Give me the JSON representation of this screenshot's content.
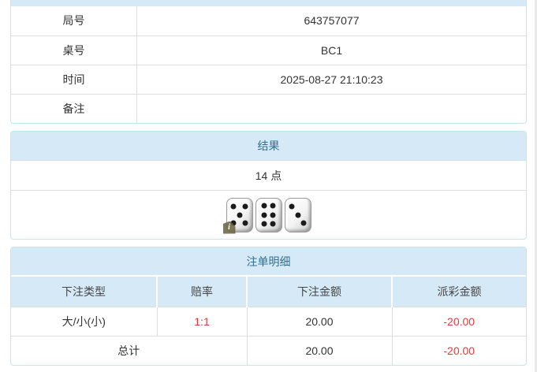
{
  "colors": {
    "panel_border": "#bce8f1",
    "header_bg": "#d5eaf6",
    "header_text": "#31708f",
    "cell_border": "#dddddd",
    "body_text": "#333333",
    "negative_text": "#e4393c"
  },
  "info_table": {
    "rows": [
      {
        "label": "局号",
        "value": "643757077"
      },
      {
        "label": "桌号",
        "value": "BC1"
      },
      {
        "label": "时间",
        "value": "2025-08-27 21:10:23"
      },
      {
        "label": "备注",
        "value": ""
      }
    ]
  },
  "result_panel": {
    "title": "结果",
    "points": "14 点",
    "dice": [
      5,
      6,
      3
    ],
    "dice_total": 14,
    "info_badge": "i"
  },
  "bets_panel": {
    "title": "注单明细",
    "columns": [
      "下注类型",
      "赔率",
      "下注金额",
      "派彩金额"
    ],
    "rows": [
      {
        "bet_type": "大/小(小)",
        "odds": "1:1",
        "bet_amount": "20.00",
        "payout": "-20.00"
      }
    ],
    "total": {
      "label": "总计",
      "bet_amount": "20.00",
      "payout": "-20.00"
    }
  }
}
